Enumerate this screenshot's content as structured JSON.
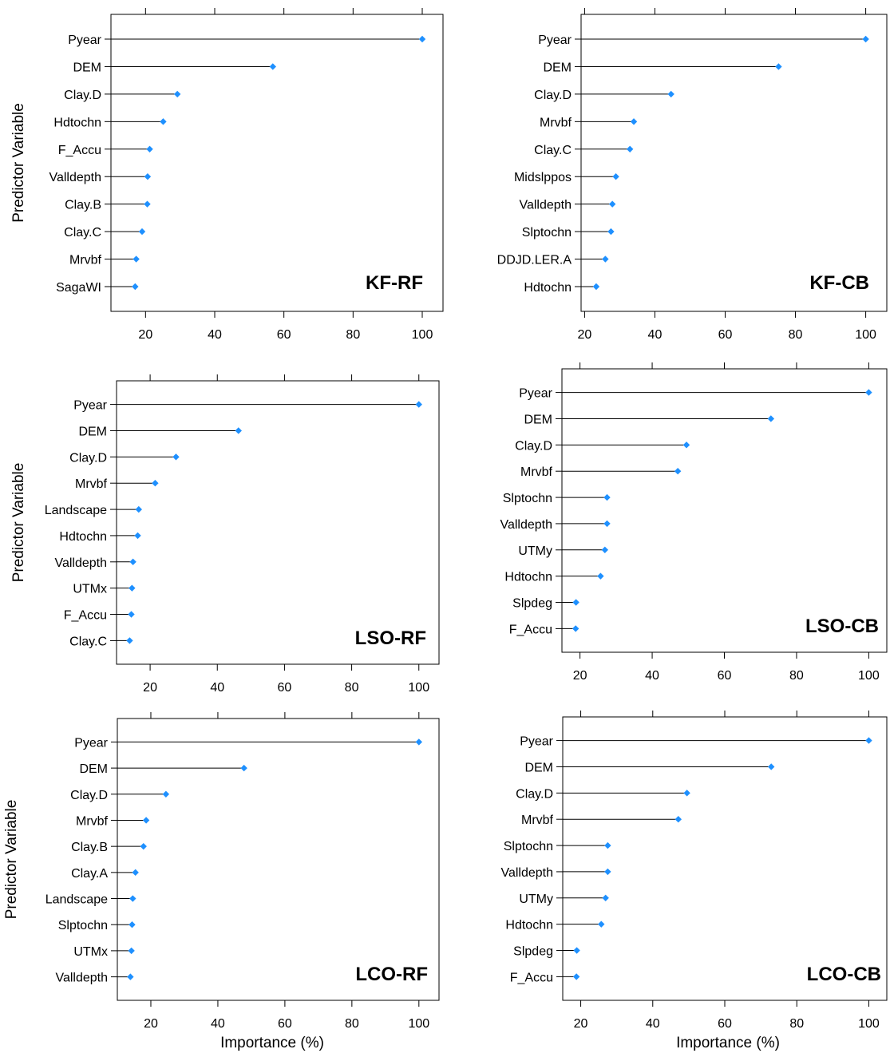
{
  "labels": {
    "ylabel": "Predictor Variable",
    "xlabel": "Importance (%)"
  },
  "colors": {
    "point": "#1E90FF",
    "line": "#000000"
  },
  "chart_data": [
    {
      "type": "dotplot",
      "tag": "KF-RF",
      "xlim": [
        10,
        106
      ],
      "xticks": [
        20,
        40,
        60,
        80,
        100
      ],
      "ylabel": "Predictor Variable",
      "xlabel": "",
      "variables": [
        "Pyear",
        "DEM",
        "Clay.D",
        "Hdtochn",
        "F_Accu",
        "Valldepth",
        "Clay.B",
        "Clay.C",
        "Mrvbf",
        "SagaWI"
      ],
      "values": [
        100,
        56.8,
        29.2,
        25.1,
        21.2,
        20.6,
        20.5,
        19.0,
        17.3,
        17.0
      ]
    },
    {
      "type": "dotplot",
      "tag": "KF-CB",
      "xlim": [
        19,
        106
      ],
      "xticks": [
        20,
        40,
        60,
        80,
        100
      ],
      "ylabel": "",
      "xlabel": "",
      "variables": [
        "Pyear",
        "DEM",
        "Clay.D",
        "Mrvbf",
        "Clay.C",
        "Midslppos",
        "Valldepth",
        "Slptochn",
        "DDJD.LER.A",
        "Hdtochn"
      ],
      "values": [
        100,
        75.2,
        44.6,
        34.0,
        32.9,
        28.9,
        27.9,
        27.5,
        25.9,
        23.3
      ]
    },
    {
      "type": "dotplot",
      "tag": "LSO-RF",
      "xlim": [
        10,
        106
      ],
      "xticks": [
        20,
        40,
        60,
        80,
        100
      ],
      "ylabel": "Predictor Variable",
      "xlabel": "",
      "variables": [
        "Pyear",
        "DEM",
        "Clay.D",
        "Mrvbf",
        "Landscape",
        "Hdtochn",
        "Valldepth",
        "UTMx",
        "F_Accu",
        "Clay.C"
      ],
      "values": [
        100,
        46.3,
        27.7,
        21.5,
        16.6,
        16.3,
        14.9,
        14.6,
        14.4,
        13.9
      ]
    },
    {
      "type": "dotplot",
      "tag": "LSO-CB",
      "xlim": [
        15,
        105
      ],
      "xticks": [
        20,
        40,
        60,
        80,
        100
      ],
      "ylabel": "",
      "xlabel": "",
      "variables": [
        "Pyear",
        "DEM",
        "Clay.D",
        "Mrvbf",
        "Slptochn",
        "Valldepth",
        "UTMy",
        "Hdtochn",
        "Slpdeg",
        "F_Accu"
      ],
      "values": [
        100,
        72.9,
        49.5,
        47.1,
        27.5,
        27.5,
        26.9,
        25.7,
        18.9,
        18.8
      ]
    },
    {
      "type": "dotplot",
      "tag": "LCO-RF",
      "xlim": [
        10,
        106
      ],
      "xticks": [
        20,
        40,
        60,
        80,
        100
      ],
      "ylabel": "Predictor Variable",
      "xlabel": "Importance (%)",
      "variables": [
        "Pyear",
        "DEM",
        "Clay.D",
        "Mrvbf",
        "Clay.B",
        "Clay.A",
        "Landscape",
        "Slptochn",
        "UTMx",
        "Valldepth"
      ],
      "values": [
        100,
        47.8,
        24.5,
        18.6,
        17.8,
        15.4,
        14.6,
        14.4,
        14.2,
        13.9
      ]
    },
    {
      "type": "dotplot",
      "tag": "LCO-CB",
      "xlim": [
        15,
        105
      ],
      "xticks": [
        20,
        40,
        60,
        80,
        100
      ],
      "ylabel": "",
      "xlabel": "Importance (%)",
      "variables": [
        "Pyear",
        "DEM",
        "Clay.D",
        "Mrvbf",
        "Slptochn",
        "Valldepth",
        "UTMy",
        "Hdtochn",
        "Slpdeg",
        "F_Accu"
      ],
      "values": [
        100,
        72.9,
        49.5,
        47.1,
        27.5,
        27.5,
        26.9,
        25.7,
        18.9,
        18.8
      ]
    }
  ]
}
